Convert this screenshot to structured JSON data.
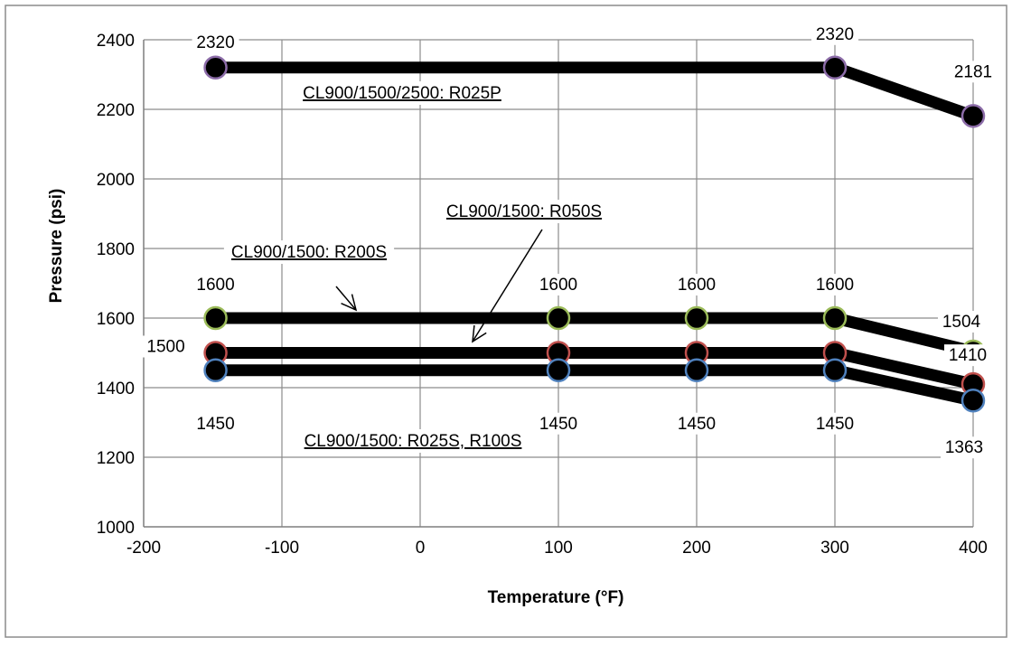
{
  "chart_data": {
    "type": "line",
    "title": "",
    "xlabel": "Temperature (°F)",
    "ylabel": "Pressure (psi)",
    "xlim": [
      -200,
      400
    ],
    "ylim": [
      1000,
      2400
    ],
    "x_ticks": [
      -200,
      -100,
      0,
      100,
      200,
      300,
      400
    ],
    "y_ticks": [
      1000,
      1200,
      1400,
      1600,
      1800,
      2000,
      2200,
      2400
    ],
    "grid": true,
    "legend": "none",
    "series": [
      {
        "label_text": "CL900/1500/2500: R025P",
        "marker_color": "#8c6ca8",
        "points": [
          [
            -148,
            2320
          ],
          [
            300,
            2320
          ],
          [
            400,
            2181
          ]
        ],
        "point_labels": [
          "2320",
          "2320",
          "2181"
        ]
      },
      {
        "label_text": "CL900/1500: R200S",
        "marker_color": "#9bbb59",
        "points": [
          [
            -148,
            1600
          ],
          [
            100,
            1600
          ],
          [
            200,
            1600
          ],
          [
            300,
            1600
          ],
          [
            400,
            1504
          ]
        ],
        "point_labels": [
          "1600",
          "1600",
          "1600",
          "1600",
          "1504"
        ]
      },
      {
        "label_text": "CL900/1500: R050S",
        "marker_color": "#c0504d",
        "points": [
          [
            -148,
            1500
          ],
          [
            100,
            1500
          ],
          [
            200,
            1500
          ],
          [
            300,
            1500
          ],
          [
            400,
            1410
          ]
        ],
        "point_labels": [
          "1500",
          "",
          "",
          "",
          "1410"
        ]
      },
      {
        "label_text": "CL900/1500: R025S, R100S",
        "marker_color": "#4f81bd",
        "points": [
          [
            -148,
            1450
          ],
          [
            100,
            1450
          ],
          [
            200,
            1450
          ],
          [
            300,
            1450
          ],
          [
            400,
            1363
          ]
        ],
        "point_labels": [
          "1450",
          "1450",
          "1450",
          "1450",
          "1363"
        ]
      }
    ]
  }
}
